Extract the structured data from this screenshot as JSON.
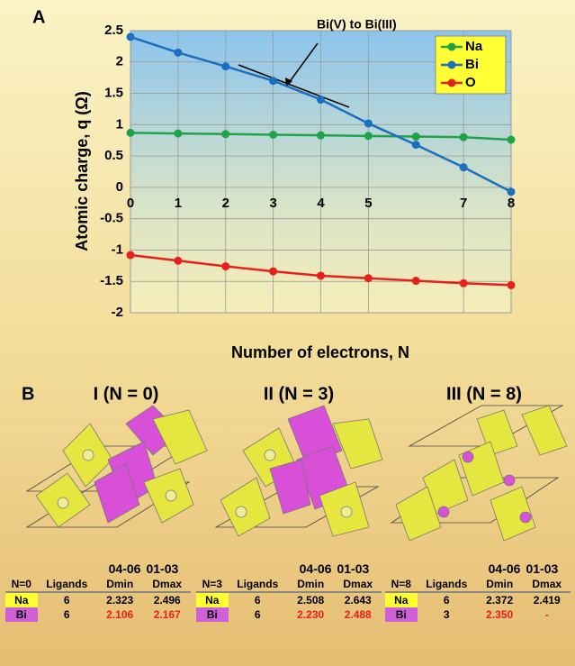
{
  "chart_data": {
    "type": "line",
    "panel_label": "A",
    "x_label": "Number of electrons, N",
    "y_label": "Atomic charge, q (Ω)",
    "annotation": "Bi(V) to Bi(III)",
    "x": [
      0,
      1,
      2,
      3,
      4,
      5,
      6,
      7,
      8
    ],
    "series": [
      {
        "name": "Na",
        "color": "#1fa34a",
        "values": [
          0.87,
          0.86,
          0.85,
          0.84,
          0.83,
          0.82,
          0.81,
          0.8,
          0.76
        ]
      },
      {
        "name": "Bi",
        "color": "#1a6fc0",
        "values": [
          2.4,
          2.15,
          1.93,
          1.7,
          1.4,
          1.02,
          0.68,
          0.32,
          -0.07
        ]
      },
      {
        "name": "O",
        "color": "#e8201c",
        "values": [
          -1.08,
          -1.17,
          -1.26,
          -1.34,
          -1.41,
          -1.45,
          -1.49,
          -1.53,
          -1.56
        ]
      }
    ],
    "xlim": [
      0,
      8
    ],
    "xticks": [
      0,
      1,
      2,
      3,
      4,
      5,
      7,
      8
    ],
    "ylim": [
      -2,
      2.5
    ],
    "yticks": [
      -2,
      -1.5,
      -1,
      -0.5,
      0,
      0.5,
      1,
      1.5,
      2,
      2.5
    ],
    "grid": true,
    "legend": "top-right"
  },
  "panel_b": {
    "label": "B",
    "structures": [
      {
        "title": "I (N = 0)",
        "table": {
          "group_headers": [
            "04-06",
            "01-03"
          ],
          "columns": [
            "N=0",
            "Ligands",
            "Dmin",
            "Dmax"
          ],
          "rows": [
            [
              "Na",
              "6",
              "2.323",
              "2.496"
            ],
            [
              "Bi",
              "6",
              "2.106",
              "2.167"
            ]
          ]
        }
      },
      {
        "title": "II (N = 3)",
        "table": {
          "group_headers": [
            "04-06",
            "01-03"
          ],
          "columns": [
            "N=3",
            "Ligands",
            "Dmin",
            "Dmax"
          ],
          "rows": [
            [
              "Na",
              "6",
              "2.508",
              "2.643"
            ],
            [
              "Bi",
              "6",
              "2.230",
              "2.488"
            ]
          ]
        }
      },
      {
        "title": "III (N = 8)",
        "table": {
          "group_headers": [
            "04-06",
            "01-03"
          ],
          "columns": [
            "N=8",
            "Ligands",
            "Dmin",
            "Dmax"
          ],
          "rows": [
            [
              "Na",
              "6",
              "2.372",
              "2.419"
            ],
            [
              "Bi",
              "3",
              "2.350",
              "-"
            ]
          ]
        }
      }
    ]
  }
}
